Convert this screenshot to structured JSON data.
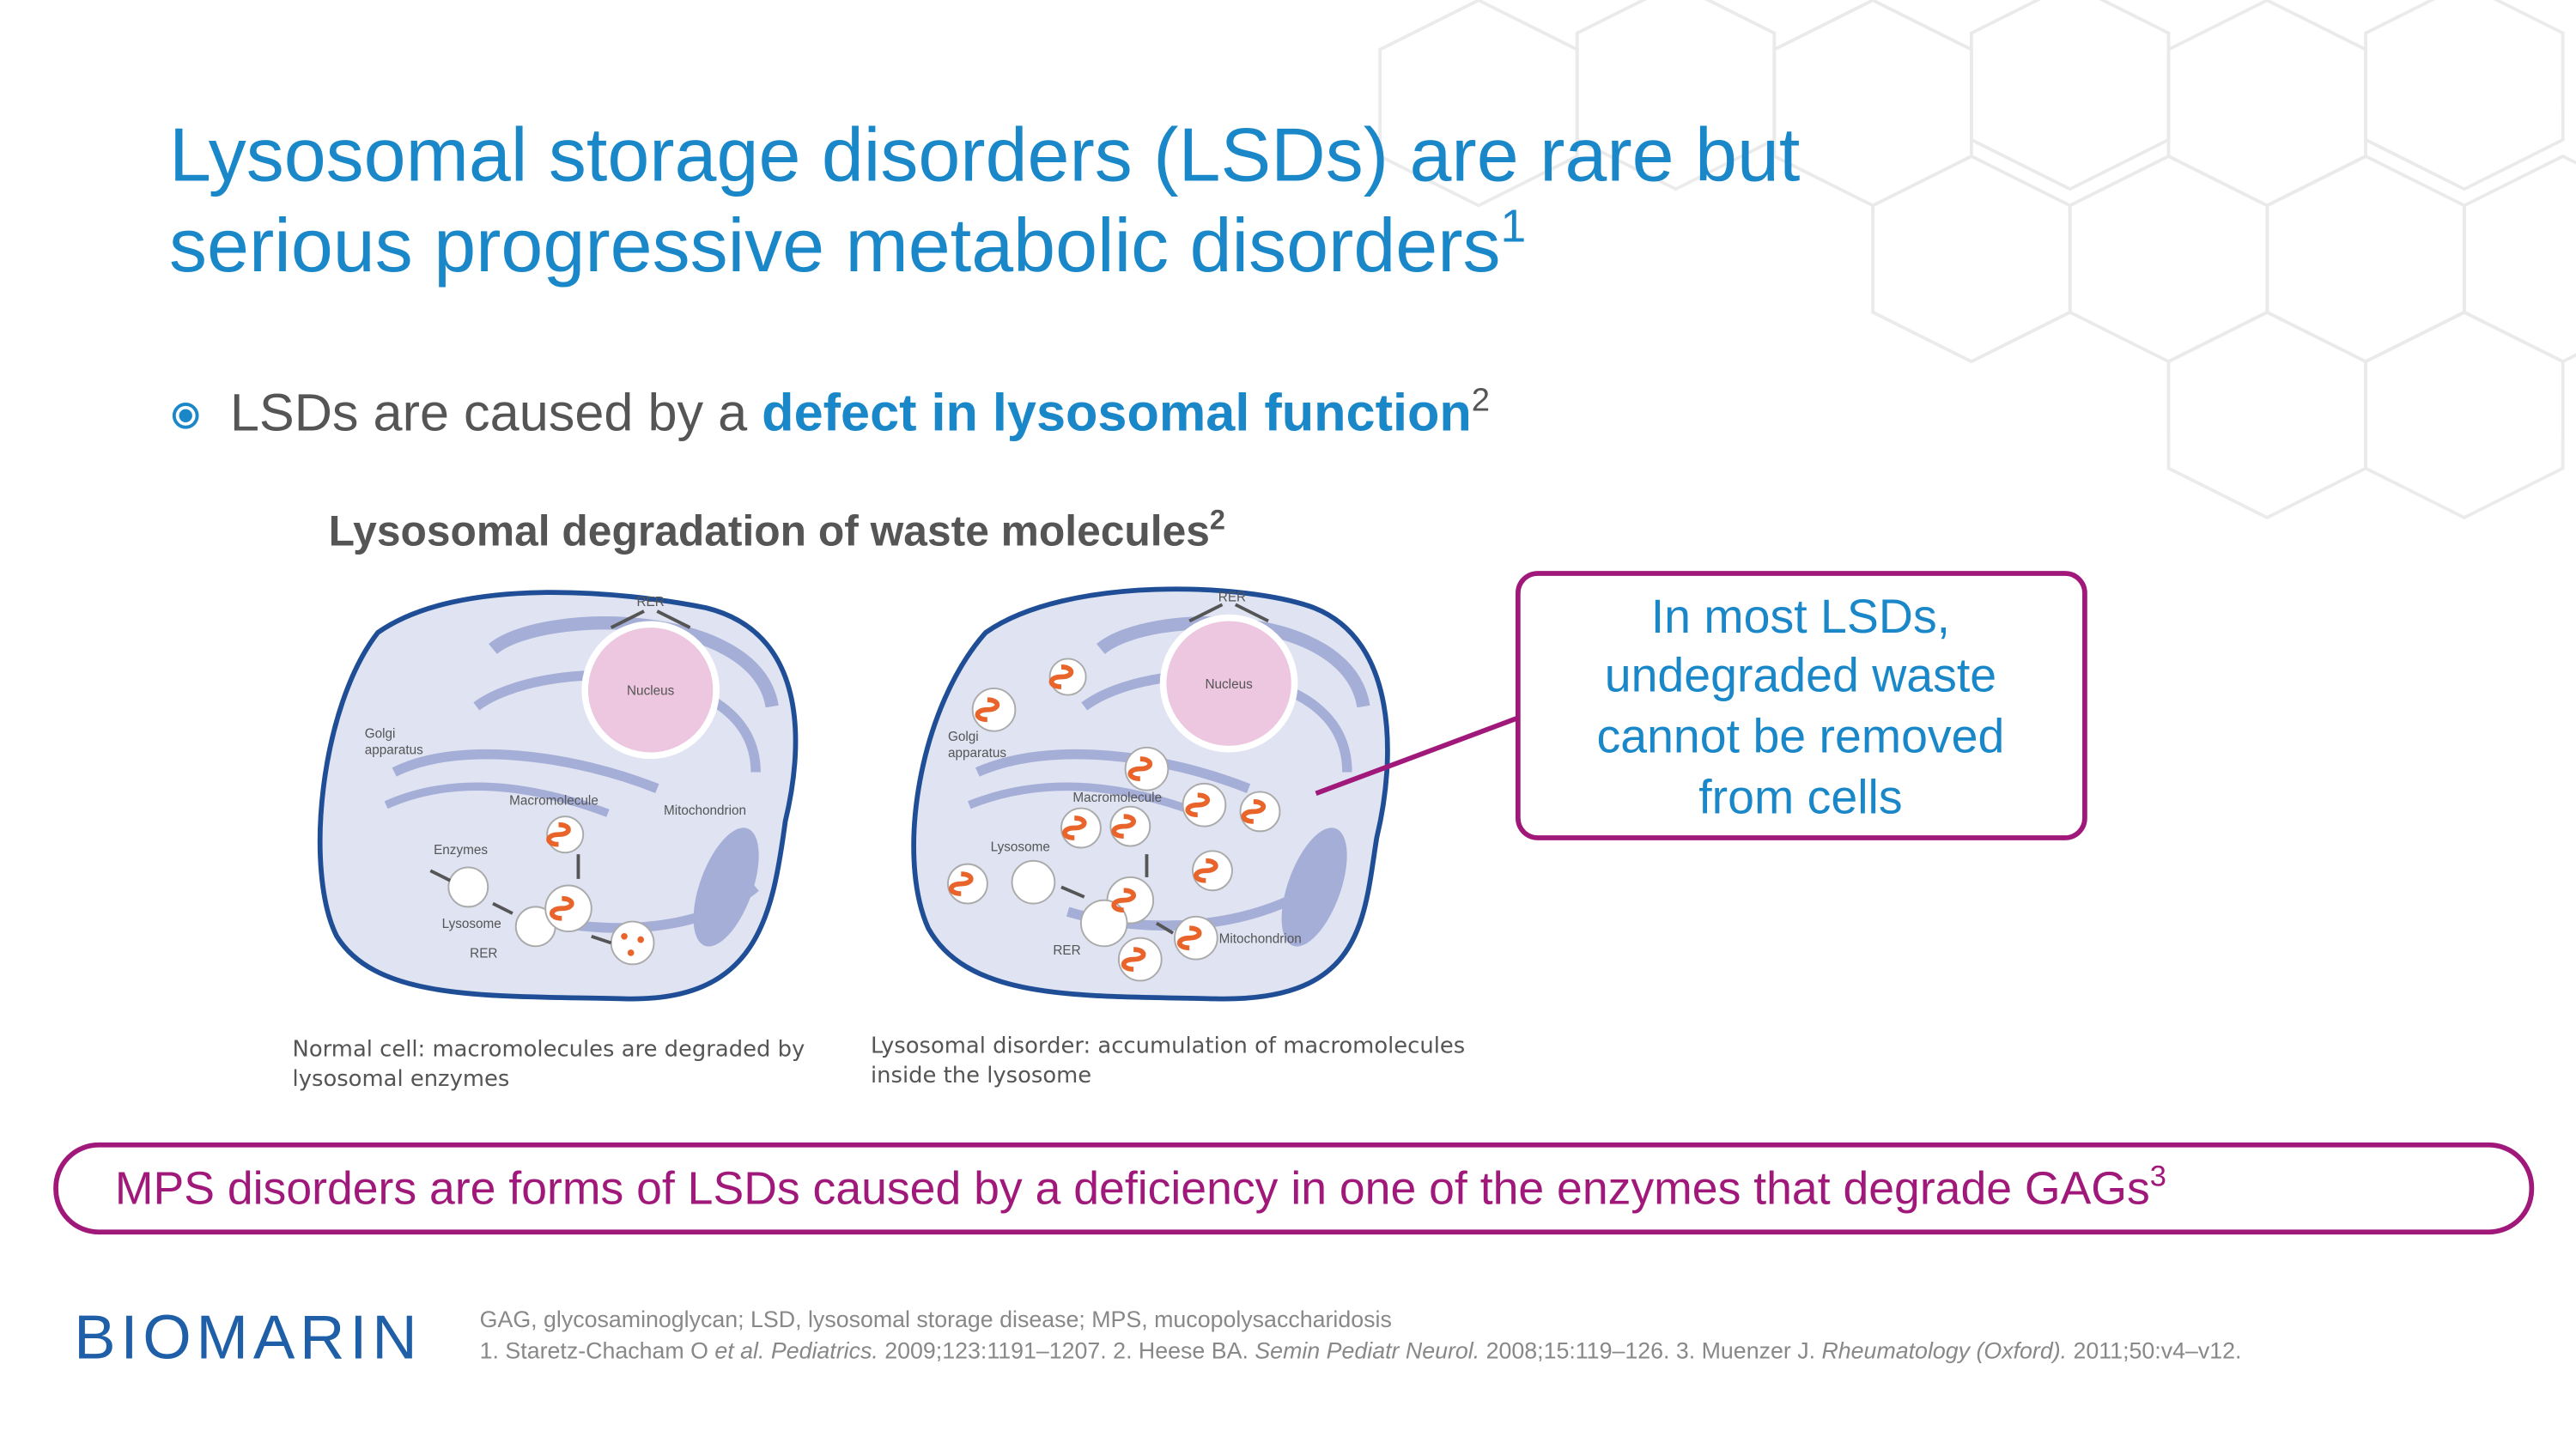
{
  "title": {
    "lines": [
      "Lysosomal storage disorders (LSDs) are rare but",
      "serious progressive metabolic disorders"
    ],
    "ref": "1"
  },
  "bullet": {
    "text": "LSDs are caused by a ",
    "emphasis": "defect in lysosomal function",
    "ref": "2"
  },
  "figure": {
    "title": "Lysosomal degradation of waste molecules",
    "ref": "2",
    "normal_cell": {
      "labels": {
        "rer_top": "RER",
        "nucleus": "Nucleus",
        "golgi": [
          "Golgi",
          "apparatus"
        ],
        "macromolecule": "Macromolecule",
        "mitochondrion": "Mitochondrion",
        "enzymes": "Enzymes",
        "lysosome": "Lysosome",
        "rer_bottom": "RER"
      },
      "caption": [
        "Normal cell: macromolecules are degraded by",
        "lysosomal enzymes"
      ]
    },
    "disorder_cell": {
      "labels": {
        "rer_top": "RER",
        "nucleus": "Nucleus",
        "golgi": [
          "Golgi",
          "apparatus"
        ],
        "macromolecule": "Macromolecule",
        "lysosome": "Lysosome",
        "mitochondrion": "Mitochondrion",
        "rer_bottom": "RER"
      },
      "caption": [
        "Lysosomal disorder: accumulation of macromolecules",
        "inside the lysosome"
      ]
    }
  },
  "callout": [
    "In most LSDs,",
    "undegraded waste",
    "cannot be removed",
    "from cells"
  ],
  "banner": {
    "text": "MPS disorders are forms of LSDs caused by a deficiency in one of the enzymes that degrade GAGs",
    "ref": "3"
  },
  "footer": {
    "logo": "BIOMARIN",
    "abbreviations": "GAG, glycosaminoglycan; LSD, lysosomal storage disease; MPS, mucopolysaccharidosis",
    "references": [
      {
        "text": "1. Staretz-Chacham O "
      },
      {
        "text": "et al. Pediatrics.",
        "italic": true
      },
      {
        "text": " 2009;123:1191–1207. 2. Heese BA. "
      },
      {
        "text": "Semin Pediatr Neurol.",
        "italic": true
      },
      {
        "text": " 2008;15:119–126. 3. Muenzer J. "
      },
      {
        "text": "Rheumatology (Oxford).",
        "italic": true
      },
      {
        "text": " 2011;50:v4–v12."
      }
    ]
  }
}
